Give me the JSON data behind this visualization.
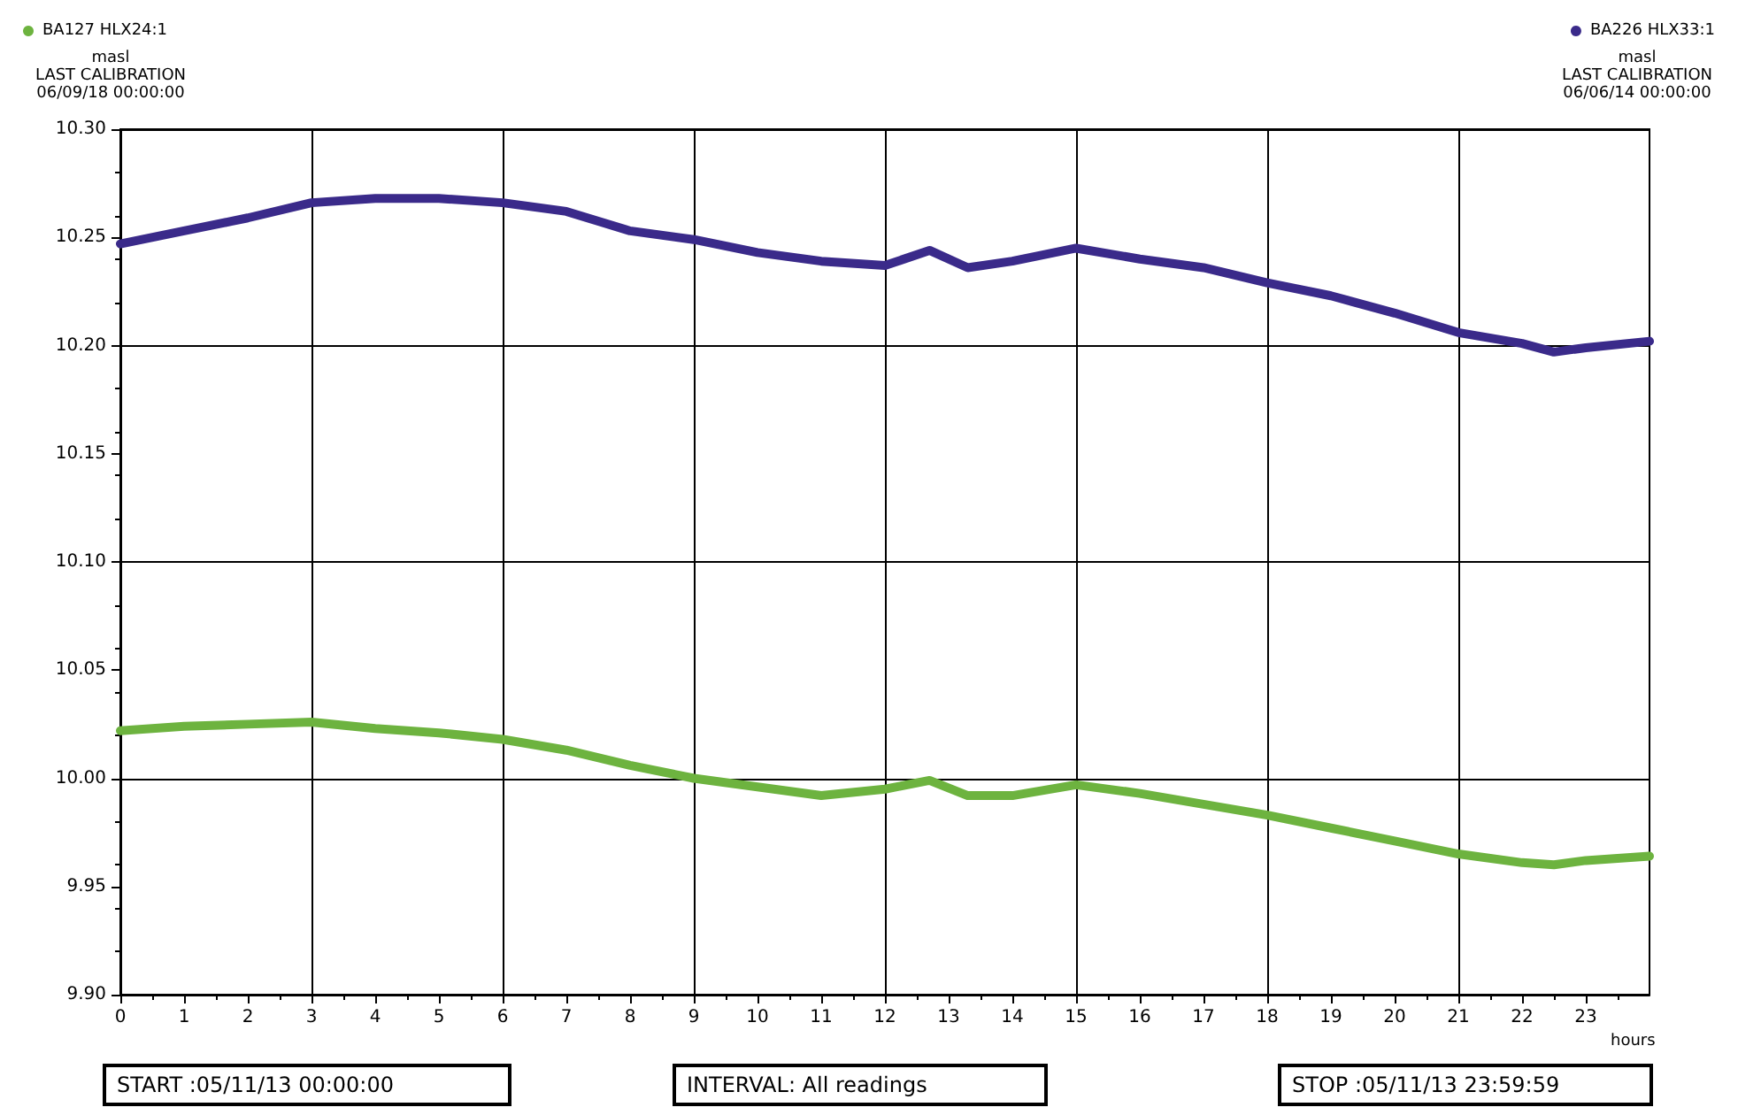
{
  "chart_data": {
    "type": "line",
    "xlabel": "hours",
    "legend": "top",
    "grid": true,
    "annotations": [
      "masl",
      "LAST CALIBRATION",
      "06/09/18 00:00:00",
      "masl",
      "LAST CALIBRATION",
      "06/06/14 00:00:00",
      "START :05/11/13 00:00:00",
      "INTERVAL: All readings",
      "STOP :05/11/13 23:59:59"
    ],
    "x": [
      0,
      1,
      2,
      3,
      4,
      5,
      6,
      7,
      8,
      9,
      10,
      11,
      12,
      12.7,
      13.3,
      14,
      15,
      16,
      17,
      18,
      19,
      20,
      21,
      22,
      22.5,
      23,
      24
    ],
    "series": [
      {
        "name": "BA127 HLX24:1",
        "color": "#6db33f",
        "values": [
          10.022,
          10.024,
          10.025,
          10.026,
          10.023,
          10.021,
          10.018,
          10.013,
          10.006,
          10.0,
          9.996,
          9.992,
          9.995,
          9.999,
          9.992,
          9.992,
          9.997,
          9.993,
          9.988,
          9.983,
          9.977,
          9.971,
          9.965,
          9.961,
          9.96,
          9.962,
          9.964
        ]
      },
      {
        "name": "BA226 HLX33:1",
        "color": "#3a2a8a",
        "values": [
          10.247,
          10.253,
          10.259,
          10.266,
          10.268,
          10.268,
          10.266,
          10.262,
          10.253,
          10.249,
          10.243,
          10.239,
          10.237,
          10.244,
          10.236,
          10.239,
          10.245,
          10.24,
          10.236,
          10.229,
          10.223,
          10.215,
          10.206,
          10.201,
          10.197,
          10.199,
          10.202
        ]
      }
    ],
    "xlim": [
      0,
      24
    ],
    "xticks": [
      0,
      1,
      2,
      3,
      4,
      5,
      6,
      7,
      8,
      9,
      10,
      11,
      12,
      13,
      14,
      15,
      16,
      17,
      18,
      19,
      20,
      21,
      22,
      23
    ],
    "ylim": [
      9.9,
      10.3
    ],
    "yticks": [
      {
        "value": 9.9,
        "label": "9.90"
      },
      {
        "value": 9.95,
        "label": "9.95"
      },
      {
        "value": 10,
        "label": "10.00"
      },
      {
        "value": 10.05,
        "label": "10.05"
      },
      {
        "value": 10.1,
        "label": "10.10"
      },
      {
        "value": 10.15,
        "label": "10.15"
      },
      {
        "value": 10.2,
        "label": "10.20"
      },
      {
        "value": 10.25,
        "label": "10.25"
      },
      {
        "value": 10.3,
        "label": "10.30"
      }
    ]
  }
}
